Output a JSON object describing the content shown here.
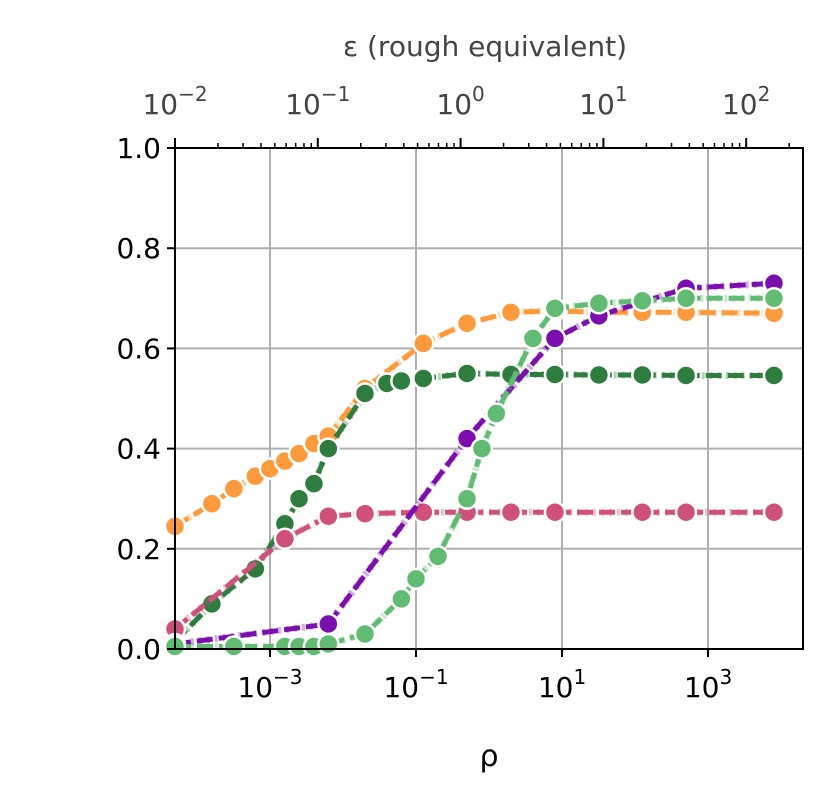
{
  "chart_data": {
    "type": "line",
    "xlabel": "ρ",
    "ylabel": "",
    "x_scale": "log",
    "xlim": [
      5e-05,
      20000
    ],
    "ylim": [
      0.0,
      1.0
    ],
    "grid": true,
    "x_ticks": [
      {
        "value": 0.001,
        "base": "10",
        "exp": "−3"
      },
      {
        "value": 0.1,
        "base": "10",
        "exp": "−1"
      },
      {
        "value": 10,
        "base": "10",
        "exp": "1"
      },
      {
        "value": 1000,
        "base": "10",
        "exp": "3"
      }
    ],
    "y_ticks": [
      {
        "value": 0.0,
        "label": "0.0"
      },
      {
        "value": 0.2,
        "label": "0.2"
      },
      {
        "value": 0.4,
        "label": "0.4"
      },
      {
        "value": 0.6,
        "label": "0.6"
      },
      {
        "value": 0.8,
        "label": "0.8"
      },
      {
        "value": 1.0,
        "label": "1.0"
      }
    ],
    "top_axis": {
      "label": "ε (rough equivalent)",
      "scale": "log",
      "lim": [
        0.01,
        250
      ],
      "ticks": [
        {
          "value": 0.01,
          "base": "10",
          "exp": "−2"
        },
        {
          "value": 0.1,
          "base": "10",
          "exp": "−1"
        },
        {
          "value": 1,
          "base": "10",
          "exp": "0"
        },
        {
          "value": 10,
          "base": "10",
          "exp": "1"
        },
        {
          "value": 100,
          "base": "10",
          "exp": "2"
        }
      ]
    },
    "series": [
      {
        "color": "#ff9a3c",
        "x": [
          5e-05,
          0.00016,
          0.00032,
          0.00063,
          0.001,
          0.0016,
          0.0025,
          0.004,
          0.0063,
          0.02,
          0.126,
          0.5,
          2.0,
          8.0,
          32,
          126,
          500,
          8000
        ],
        "y": [
          0.245,
          0.29,
          0.32,
          0.345,
          0.36,
          0.375,
          0.39,
          0.41,
          0.425,
          0.52,
          0.61,
          0.65,
          0.672,
          0.675,
          0.672,
          0.672,
          0.672,
          0.67
        ]
      },
      {
        "color": "#2e7d3e",
        "x": [
          5e-05,
          0.00016,
          0.00063,
          0.0016,
          0.0025,
          0.004,
          0.0063,
          0.02,
          0.04,
          0.063,
          0.126,
          0.5,
          2.0,
          8.0,
          32,
          126,
          500,
          8000
        ],
        "y": [
          0.015,
          0.09,
          0.16,
          0.25,
          0.3,
          0.33,
          0.4,
          0.51,
          0.53,
          0.535,
          0.54,
          0.55,
          0.548,
          0.548,
          0.547,
          0.547,
          0.546,
          0.546
        ]
      },
      {
        "color": "#d0507a",
        "x": [
          5e-05,
          0.0016,
          0.0063,
          0.02,
          0.126,
          0.5,
          2.0,
          8.0,
          126,
          500,
          8000
        ],
        "y": [
          0.04,
          0.22,
          0.265,
          0.27,
          0.273,
          0.273,
          0.273,
          0.273,
          0.273,
          0.273,
          0.273
        ]
      },
      {
        "color": "#7a0eb0",
        "x": [
          5e-05,
          0.0063,
          0.5,
          8.0,
          32,
          500,
          8000
        ],
        "y": [
          0.01,
          0.05,
          0.42,
          0.62,
          0.665,
          0.72,
          0.73
        ]
      },
      {
        "color": "#62bb72",
        "x": [
          5e-05,
          0.00032,
          0.0016,
          0.0025,
          0.004,
          0.0063,
          0.02,
          0.063,
          0.1,
          0.2,
          0.5,
          0.8,
          1.26,
          4.0,
          8.0,
          32,
          126,
          500,
          8000
        ],
        "y": [
          0.005,
          0.005,
          0.005,
          0.005,
          0.005,
          0.01,
          0.03,
          0.1,
          0.14,
          0.185,
          0.3,
          0.4,
          0.47,
          0.62,
          0.68,
          0.69,
          0.695,
          0.7,
          0.7
        ]
      }
    ]
  }
}
